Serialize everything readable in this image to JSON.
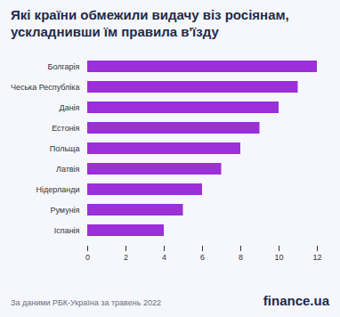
{
  "chart_data": {
    "type": "bar",
    "orientation": "horizontal",
    "title": "Які країни обмежили видачу віз росіянам, ускладнивши їм правила в'їзду",
    "categories": [
      "Болгарія",
      "Чеська Республіка",
      "Данія",
      "Естонія",
      "Польща",
      "Латвія",
      "Нідерланди",
      "Румунія",
      "Іспанія"
    ],
    "values": [
      12,
      11,
      10,
      9,
      8,
      7,
      6,
      5,
      4
    ],
    "color": "#9b2fd8",
    "xlim": [
      0,
      12
    ],
    "xticks": [
      0,
      2,
      4,
      6,
      8,
      10,
      12
    ],
    "grid": false,
    "caption": "За даними РБК-Україна за травень 2022",
    "brand": "finance.ua"
  }
}
